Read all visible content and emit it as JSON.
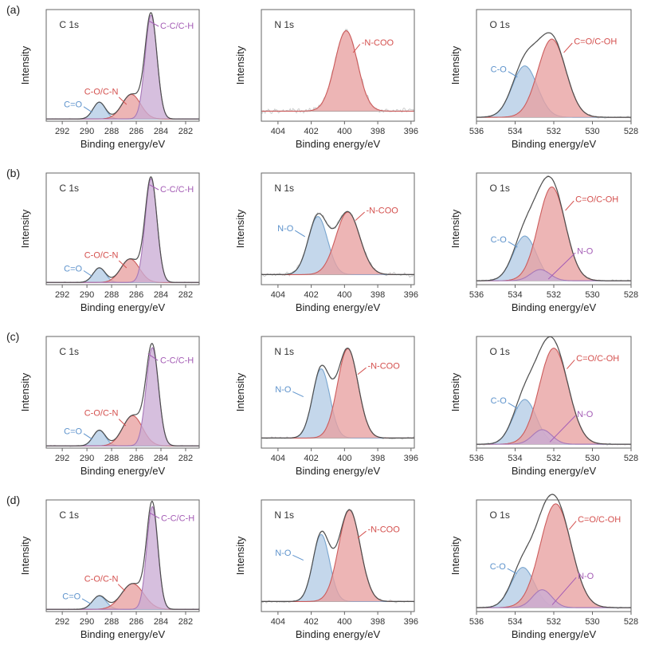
{
  "figure": {
    "xlabel": "Binding energy/eV",
    "ylabel": "Intensity",
    "row_labels": [
      "(a)",
      "(b)",
      "(c)",
      "(d)"
    ],
    "panel_titles": [
      "C 1s",
      "N 1s",
      "O 1s"
    ],
    "colors": {
      "blue_line": "#7aa6cf",
      "blue_fill": "#b3cce5",
      "blue_text": "#5e93cc",
      "red_line": "#cc5c5c",
      "red_fill": "#e8a0a0",
      "red_text": "#d4504e",
      "purple_line": "#a778b8",
      "purple_fill": "#cbadd5",
      "purple_text": "#a45cb5",
      "envelope": "#4f4f4f",
      "raw": "#c8c8c8",
      "frame": "#666666",
      "baseline": "#909090",
      "text": "#333333"
    }
  },
  "chart_data": [
    {
      "type": "area",
      "row": "a",
      "title": "C 1s",
      "xlabel": "Binding energy/eV",
      "ylabel": "Intensity",
      "x_range": [
        293.3,
        280.9
      ],
      "x_ticks": [
        292,
        290,
        288,
        286,
        284,
        282
      ],
      "baseline": 0.02,
      "noise": 0.006,
      "envelope": true,
      "peaks": [
        {
          "name": "C=O",
          "color": "blue",
          "center": 289.0,
          "sigma": 0.5,
          "height": 0.15
        },
        {
          "name": "C-O/C-N",
          "color": "red",
          "center": 286.4,
          "sigma": 0.75,
          "height": 0.22
        },
        {
          "name": "C-C/C-H",
          "color": "purple",
          "center": 284.8,
          "sigma": 0.48,
          "height": 0.93
        }
      ],
      "annotations": [
        {
          "text": "C 1s",
          "role": "title",
          "anchor": "start",
          "x": 0.085,
          "y": 0.86
        },
        {
          "text": "C=O",
          "color": "blue",
          "anchor": "end",
          "x": 0.235,
          "y": 0.145,
          "line": [
            0.245,
            0.13,
            0.3,
            0.08
          ]
        },
        {
          "text": "C-O/C-N",
          "color": "red",
          "anchor": "middle",
          "x": 0.36,
          "y": 0.26,
          "line": [
            0.475,
            0.215,
            0.525,
            0.15
          ]
        },
        {
          "text": "C-C/C-H",
          "color": "purple",
          "anchor": "start",
          "x": 0.745,
          "y": 0.85,
          "line": [
            0.675,
            0.895,
            0.735,
            0.85
          ]
        }
      ]
    },
    {
      "type": "area",
      "row": "a",
      "title": "N 1s",
      "xlabel": "Binding energy/eV",
      "ylabel": "Intensity",
      "x_range": [
        405,
        395.8
      ],
      "x_ticks": [
        404,
        402,
        400,
        398,
        396
      ],
      "baseline": 0.09,
      "noise": 0.035,
      "envelope": false,
      "peaks": [
        {
          "name": "-N-COO",
          "color": "red",
          "center": 399.9,
          "sigma": 0.68,
          "height": 0.72
        }
      ],
      "annotations": [
        {
          "text": "N 1s",
          "role": "title",
          "anchor": "start",
          "x": 0.085,
          "y": 0.86
        },
        {
          "text": "-N-COO",
          "color": "red",
          "anchor": "start",
          "x": 0.655,
          "y": 0.7,
          "line": [
            0.6,
            0.615,
            0.645,
            0.69
          ]
        }
      ]
    },
    {
      "type": "area",
      "row": "a",
      "title": "O 1s",
      "xlabel": "Binding energy/eV",
      "ylabel": "Intensity",
      "x_range": [
        536,
        528
      ],
      "x_ticks": [
        536,
        534,
        532,
        530,
        528
      ],
      "baseline": 0.035,
      "noise": 0.012,
      "envelope": true,
      "peaks": [
        {
          "name": "C-O",
          "color": "blue",
          "center": 533.5,
          "sigma": 0.65,
          "height": 0.46
        },
        {
          "name": "C=O/C-OH",
          "color": "red",
          "center": 532.1,
          "sigma": 0.72,
          "height": 0.7
        }
      ],
      "annotations": [
        {
          "text": "O 1s",
          "role": "title",
          "anchor": "start",
          "x": 0.085,
          "y": 0.86
        },
        {
          "text": "C-O",
          "color": "blue",
          "anchor": "end",
          "x": 0.195,
          "y": 0.46,
          "line": [
            0.205,
            0.445,
            0.265,
            0.395
          ]
        },
        {
          "text": "C=O/C-OH",
          "color": "red",
          "anchor": "start",
          "x": 0.63,
          "y": 0.71,
          "line": [
            0.565,
            0.615,
            0.62,
            0.7
          ]
        }
      ]
    },
    {
      "type": "area",
      "row": "b",
      "title": "C 1s",
      "xlabel": "Binding energy/eV",
      "ylabel": "Intensity",
      "x_range": [
        293.3,
        280.9
      ],
      "x_ticks": [
        292,
        290,
        288,
        286,
        284,
        282
      ],
      "baseline": 0.02,
      "noise": 0.006,
      "envelope": true,
      "peaks": [
        {
          "name": "C=O",
          "color": "blue",
          "center": 289.0,
          "sigma": 0.5,
          "height": 0.13
        },
        {
          "name": "C-O/C-N",
          "color": "red",
          "center": 286.5,
          "sigma": 0.75,
          "height": 0.21
        },
        {
          "name": "C-C/C-H",
          "color": "purple",
          "center": 284.8,
          "sigma": 0.48,
          "height": 0.93
        }
      ],
      "annotations": [
        {
          "text": "C 1s",
          "role": "title",
          "anchor": "start",
          "x": 0.085,
          "y": 0.86
        },
        {
          "text": "C=O",
          "color": "blue",
          "anchor": "end",
          "x": 0.235,
          "y": 0.14,
          "line": [
            0.245,
            0.125,
            0.3,
            0.075
          ]
        },
        {
          "text": "C-O/C-N",
          "color": "red",
          "anchor": "middle",
          "x": 0.36,
          "y": 0.26,
          "line": [
            0.475,
            0.215,
            0.525,
            0.15
          ]
        },
        {
          "text": "C-C/C-H",
          "color": "purple",
          "anchor": "start",
          "x": 0.745,
          "y": 0.85,
          "line": [
            0.675,
            0.895,
            0.735,
            0.85
          ]
        }
      ]
    },
    {
      "type": "area",
      "row": "b",
      "title": "N 1s",
      "xlabel": "Binding energy/eV",
      "ylabel": "Intensity",
      "x_range": [
        405,
        395.8
      ],
      "x_ticks": [
        404,
        402,
        400,
        398,
        396
      ],
      "baseline": 0.09,
      "noise": 0.025,
      "envelope": true,
      "peaks": [
        {
          "name": "N-O",
          "color": "blue",
          "center": 401.6,
          "sigma": 0.58,
          "height": 0.52
        },
        {
          "name": "-N-COO",
          "color": "red",
          "center": 399.8,
          "sigma": 0.72,
          "height": 0.56
        }
      ],
      "annotations": [
        {
          "text": "N 1s",
          "role": "title",
          "anchor": "start",
          "x": 0.085,
          "y": 0.86
        },
        {
          "text": "N-O",
          "color": "blue",
          "anchor": "end",
          "x": 0.21,
          "y": 0.5,
          "line": [
            0.22,
            0.485,
            0.285,
            0.43
          ]
        },
        {
          "text": "-N-COO",
          "color": "red",
          "anchor": "start",
          "x": 0.685,
          "y": 0.66,
          "line": [
            0.615,
            0.575,
            0.675,
            0.65
          ]
        }
      ]
    },
    {
      "type": "area",
      "row": "b",
      "title": "O 1s",
      "xlabel": "Binding energy/eV",
      "ylabel": "Intensity",
      "x_range": [
        536,
        528
      ],
      "x_ticks": [
        536,
        534,
        532,
        530,
        528
      ],
      "baseline": 0.035,
      "noise": 0.012,
      "envelope": true,
      "peaks": [
        {
          "name": "C-O",
          "color": "blue",
          "center": 533.5,
          "sigma": 0.6,
          "height": 0.4
        },
        {
          "name": "C=O/C-OH",
          "color": "red",
          "center": 532.1,
          "sigma": 0.7,
          "height": 0.84
        },
        {
          "name": "N-O",
          "color": "purple",
          "center": 532.7,
          "sigma": 0.5,
          "height": 0.1
        }
      ],
      "annotations": [
        {
          "text": "O 1s",
          "role": "title",
          "anchor": "start",
          "x": 0.085,
          "y": 0.86
        },
        {
          "text": "C-O",
          "color": "blue",
          "anchor": "end",
          "x": 0.195,
          "y": 0.4,
          "line": [
            0.205,
            0.385,
            0.265,
            0.335
          ]
        },
        {
          "text": "C=O/C-OH",
          "color": "red",
          "anchor": "start",
          "x": 0.64,
          "y": 0.76,
          "line": [
            0.575,
            0.665,
            0.63,
            0.75
          ]
        },
        {
          "text": "N-O",
          "color": "purple",
          "anchor": "start",
          "x": 0.65,
          "y": 0.295,
          "line": [
            0.465,
            0.05,
            0.64,
            0.285
          ]
        }
      ]
    },
    {
      "type": "area",
      "row": "c",
      "title": "C 1s",
      "xlabel": "Binding energy/eV",
      "ylabel": "Intensity",
      "x_range": [
        293.3,
        280.9
      ],
      "x_ticks": [
        292,
        290,
        288,
        286,
        284,
        282
      ],
      "baseline": 0.02,
      "noise": 0.006,
      "envelope": true,
      "peaks": [
        {
          "name": "C=O",
          "color": "blue",
          "center": 289.0,
          "sigma": 0.5,
          "height": 0.14
        },
        {
          "name": "C-O/C-N",
          "color": "red",
          "center": 286.3,
          "sigma": 0.8,
          "height": 0.27
        },
        {
          "name": "C-C/C-H",
          "color": "purple",
          "center": 284.7,
          "sigma": 0.5,
          "height": 0.88
        }
      ],
      "annotations": [
        {
          "text": "C 1s",
          "role": "title",
          "anchor": "start",
          "x": 0.085,
          "y": 0.86
        },
        {
          "text": "C=O",
          "color": "blue",
          "anchor": "end",
          "x": 0.235,
          "y": 0.145,
          "line": [
            0.245,
            0.13,
            0.3,
            0.08
          ]
        },
        {
          "text": "C-O/C-N",
          "color": "red",
          "anchor": "middle",
          "x": 0.36,
          "y": 0.31,
          "line": [
            0.475,
            0.26,
            0.52,
            0.2
          ]
        },
        {
          "text": "C-C/C-H",
          "color": "purple",
          "anchor": "start",
          "x": 0.745,
          "y": 0.78,
          "line": [
            0.665,
            0.845,
            0.73,
            0.785
          ]
        }
      ]
    },
    {
      "type": "area",
      "row": "c",
      "title": "N 1s",
      "xlabel": "Binding energy/eV",
      "ylabel": "Intensity",
      "x_range": [
        405,
        395.8
      ],
      "x_ticks": [
        404,
        402,
        400,
        398,
        396
      ],
      "baseline": 0.09,
      "noise": 0.015,
      "envelope": true,
      "peaks": [
        {
          "name": "N-O",
          "color": "blue",
          "center": 401.4,
          "sigma": 0.52,
          "height": 0.62
        },
        {
          "name": "-N-COO",
          "color": "red",
          "center": 399.8,
          "sigma": 0.62,
          "height": 0.8
        }
      ],
      "annotations": [
        {
          "text": "N 1s",
          "role": "title",
          "anchor": "start",
          "x": 0.085,
          "y": 0.86
        },
        {
          "text": "N-O",
          "color": "blue",
          "anchor": "end",
          "x": 0.195,
          "y": 0.52,
          "line": [
            0.205,
            0.505,
            0.275,
            0.46
          ]
        },
        {
          "text": "-N-COO",
          "color": "red",
          "anchor": "start",
          "x": 0.695,
          "y": 0.73,
          "line": [
            0.63,
            0.66,
            0.685,
            0.72
          ]
        }
      ]
    },
    {
      "type": "area",
      "row": "c",
      "title": "O 1s",
      "xlabel": "Binding energy/eV",
      "ylabel": "Intensity",
      "x_range": [
        536,
        528
      ],
      "x_ticks": [
        536,
        534,
        532,
        530,
        528
      ],
      "baseline": 0.035,
      "noise": 0.012,
      "envelope": true,
      "peaks": [
        {
          "name": "C-O",
          "color": "blue",
          "center": 533.5,
          "sigma": 0.6,
          "height": 0.4
        },
        {
          "name": "C=O/C-OH",
          "color": "red",
          "center": 532.0,
          "sigma": 0.75,
          "height": 0.86
        },
        {
          "name": "N-O",
          "color": "purple",
          "center": 532.6,
          "sigma": 0.5,
          "height": 0.13
        }
      ],
      "annotations": [
        {
          "text": "O 1s",
          "role": "title",
          "anchor": "start",
          "x": 0.085,
          "y": 0.86
        },
        {
          "text": "C-O",
          "color": "blue",
          "anchor": "end",
          "x": 0.195,
          "y": 0.42,
          "line": [
            0.205,
            0.405,
            0.265,
            0.355
          ]
        },
        {
          "text": "C=O/C-OH",
          "color": "red",
          "anchor": "start",
          "x": 0.645,
          "y": 0.8,
          "line": [
            0.585,
            0.71,
            0.635,
            0.79
          ]
        },
        {
          "text": "N-O",
          "color": "purple",
          "anchor": "start",
          "x": 0.65,
          "y": 0.3,
          "line": [
            0.475,
            0.055,
            0.64,
            0.29
          ]
        }
      ]
    },
    {
      "type": "area",
      "row": "d",
      "title": "C 1s",
      "xlabel": "Binding energy/eV",
      "ylabel": "Intensity",
      "x_range": [
        293.3,
        280.9
      ],
      "x_ticks": [
        292,
        290,
        288,
        286,
        284,
        282
      ],
      "baseline": 0.02,
      "noise": 0.006,
      "envelope": true,
      "peaks": [
        {
          "name": "C=O",
          "color": "blue",
          "center": 289.0,
          "sigma": 0.55,
          "height": 0.12
        },
        {
          "name": "C-O/C-N",
          "color": "red",
          "center": 286.3,
          "sigma": 0.9,
          "height": 0.23
        },
        {
          "name": "C-C/C-H",
          "color": "purple",
          "center": 284.7,
          "sigma": 0.45,
          "height": 0.92
        }
      ],
      "annotations": [
        {
          "text": "C 1s",
          "role": "title",
          "anchor": "start",
          "x": 0.085,
          "y": 0.86
        },
        {
          "text": "C=O",
          "color": "blue",
          "anchor": "end",
          "x": 0.225,
          "y": 0.13,
          "line": [
            0.235,
            0.115,
            0.29,
            0.07
          ]
        },
        {
          "text": "C-O/C-N",
          "color": "red",
          "anchor": "middle",
          "x": 0.36,
          "y": 0.29,
          "line": [
            0.47,
            0.245,
            0.515,
            0.185
          ]
        },
        {
          "text": "C-C/C-H",
          "color": "purple",
          "anchor": "start",
          "x": 0.75,
          "y": 0.83,
          "line": [
            0.675,
            0.885,
            0.74,
            0.835
          ]
        }
      ]
    },
    {
      "type": "area",
      "row": "d",
      "title": "N 1s",
      "xlabel": "Binding energy/eV",
      "ylabel": "Intensity",
      "x_range": [
        405,
        395.8
      ],
      "x_ticks": [
        404,
        402,
        400,
        398,
        396
      ],
      "baseline": 0.09,
      "noise": 0.015,
      "envelope": true,
      "peaks": [
        {
          "name": "N-O",
          "color": "blue",
          "center": 401.4,
          "sigma": 0.5,
          "height": 0.6
        },
        {
          "name": "-N-COO",
          "color": "red",
          "center": 399.7,
          "sigma": 0.65,
          "height": 0.82
        }
      ],
      "annotations": [
        {
          "text": "N 1s",
          "role": "title",
          "anchor": "start",
          "x": 0.085,
          "y": 0.86
        },
        {
          "text": "N-O",
          "color": "blue",
          "anchor": "end",
          "x": 0.195,
          "y": 0.52,
          "line": [
            0.205,
            0.505,
            0.275,
            0.46
          ]
        },
        {
          "text": "-N-COO",
          "color": "red",
          "anchor": "start",
          "x": 0.695,
          "y": 0.73,
          "line": [
            0.63,
            0.66,
            0.685,
            0.72
          ]
        }
      ]
    },
    {
      "type": "area",
      "row": "d",
      "title": "O 1s",
      "xlabel": "Binding energy/eV",
      "ylabel": "Intensity",
      "x_range": [
        536,
        528
      ],
      "x_ticks": [
        536,
        534,
        532,
        530,
        528
      ],
      "baseline": 0.035,
      "noise": 0.012,
      "envelope": true,
      "peaks": [
        {
          "name": "C-O",
          "color": "blue",
          "center": 533.6,
          "sigma": 0.6,
          "height": 0.36
        },
        {
          "name": "C=O/C-OH",
          "color": "red",
          "center": 531.9,
          "sigma": 0.8,
          "height": 0.93
        },
        {
          "name": "N-O",
          "color": "purple",
          "center": 532.6,
          "sigma": 0.5,
          "height": 0.16
        }
      ],
      "annotations": [
        {
          "text": "O 1s",
          "role": "title",
          "anchor": "start",
          "x": 0.085,
          "y": 0.86
        },
        {
          "text": "C-O",
          "color": "blue",
          "anchor": "end",
          "x": 0.19,
          "y": 0.4,
          "line": [
            0.2,
            0.385,
            0.26,
            0.34
          ]
        },
        {
          "text": "C=O/C-OH",
          "color": "red",
          "anchor": "start",
          "x": 0.655,
          "y": 0.82,
          "line": [
            0.6,
            0.735,
            0.645,
            0.81
          ]
        },
        {
          "text": "N-O",
          "color": "purple",
          "anchor": "start",
          "x": 0.655,
          "y": 0.315,
          "line": [
            0.49,
            0.06,
            0.645,
            0.305
          ]
        }
      ]
    }
  ]
}
